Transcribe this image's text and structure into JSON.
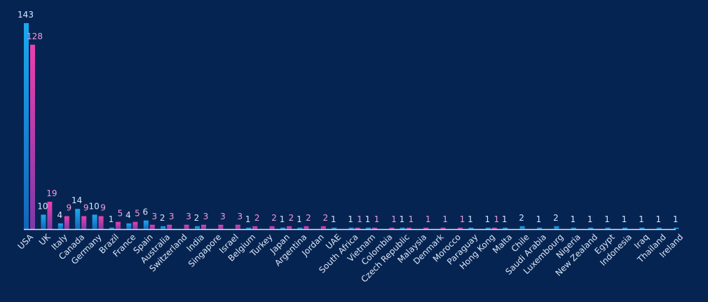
{
  "colors": {
    "background": "#062452",
    "series_1_top": "#1aa9f0",
    "series_1_bottom": "#1565b8",
    "series_2_top": "#ec3fae",
    "series_2_bottom": "#7b3aa8",
    "series_1_label": "#d8e6ff",
    "series_2_label": "#f59ad9",
    "axis_line": "#dce6f5",
    "tick_label": "#dce6f5"
  },
  "chart_data": {
    "type": "bar",
    "title": "",
    "xlabel": "",
    "ylabel": "",
    "ylim": [
      0,
      143
    ],
    "grid": false,
    "legend": "none",
    "categories": [
      "USA",
      "UK",
      "Italy",
      "Canada",
      "Germany",
      "Brazil",
      "France",
      "Spain",
      "Australia",
      "Switzerland",
      "India",
      "Singapore",
      "Israel",
      "Belgium",
      "Turkey",
      "Japan",
      "Argentina",
      "Jordan",
      "UAE",
      "South Africa",
      "Vietnam",
      "Colombia",
      "Czech Republic",
      "Malaysia",
      "Denmark",
      "Morocco",
      "Paraguay",
      "Hong Kong",
      "Malta",
      "Chile",
      "Saudi Arabia",
      "Luxembourg",
      "Nigeria",
      "New Zealand",
      "Egypt",
      "Indonesia",
      "Iraq",
      "Thailand",
      "Ireland"
    ],
    "series": [
      {
        "values": [
          143,
          10,
          4,
          14,
          10,
          1,
          4,
          6,
          2,
          null,
          2,
          null,
          null,
          1,
          null,
          1,
          1,
          null,
          1,
          1,
          1,
          null,
          1,
          null,
          null,
          null,
          1,
          1,
          1,
          2,
          1,
          2,
          1,
          1,
          1,
          1,
          1,
          1,
          1
        ]
      },
      {
        "values": [
          128,
          19,
          9,
          9,
          9,
          5,
          5,
          3,
          3,
          3,
          3,
          3,
          3,
          2,
          2,
          2,
          2,
          2,
          null,
          1,
          1,
          1,
          1,
          1,
          1,
          1,
          null,
          1,
          null,
          null,
          null,
          null,
          null,
          null,
          null,
          null,
          null,
          null,
          null
        ]
      }
    ]
  }
}
